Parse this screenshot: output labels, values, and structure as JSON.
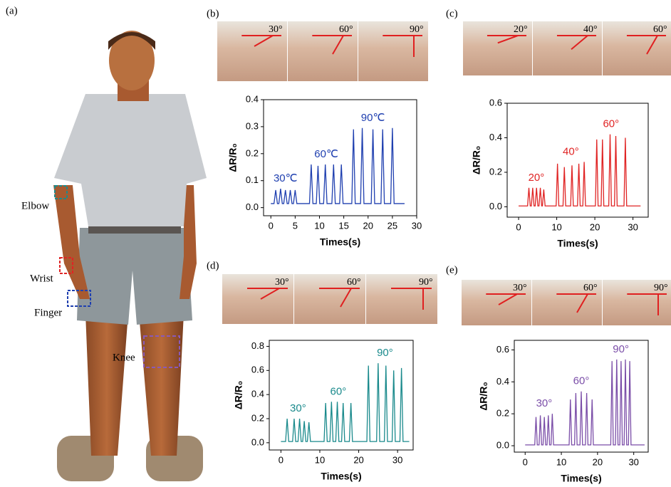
{
  "figure": {
    "panel_a": "(a)",
    "body_labels": [
      "Elbow",
      "Wrist",
      "Finger",
      "Knee"
    ]
  },
  "chart_data": [
    {
      "type": "line",
      "panel": "(b)",
      "photo_labels": [
        "30°",
        "60°",
        "90°"
      ],
      "annotations": [
        "30℃",
        "60℃",
        "90℃"
      ],
      "xlabel": "Times(s)",
      "ylabel": "ΔR/R₀",
      "color": "#2040b0",
      "xlim": [
        -1.5,
        30
      ],
      "xticks": [
        0,
        5,
        10,
        15,
        20,
        25,
        30
      ],
      "ylim": [
        -0.03,
        0.4
      ],
      "yticks": [
        {
          "value": 0,
          "label": "0.0"
        },
        0.1,
        0.2,
        0.3,
        0.4
      ],
      "x": [
        0,
        0.65,
        1,
        1.35,
        1.65,
        2,
        2.35,
        2.65,
        3,
        3.35,
        3.65,
        4,
        4.35,
        4.65,
        5,
        5.35,
        7.95,
        8.3,
        8.65,
        9.35,
        9.7,
        10.05,
        10.85,
        11.2,
        11.55,
        12.55,
        12.9,
        13.25,
        14.15,
        14.5,
        14.85,
        16.65,
        17,
        17.35,
        18.45,
        18.8,
        19.15,
        20.65,
        21,
        21.35,
        22.65,
        23,
        23.35,
        24.65,
        25,
        25.35,
        27.5
      ],
      "values": [
        0.015,
        0.015,
        0.065,
        0.015,
        0.015,
        0.07,
        0.015,
        0.015,
        0.065,
        0.015,
        0.015,
        0.065,
        0.015,
        0.015,
        0.065,
        0.015,
        0.015,
        0.16,
        0.015,
        0.015,
        0.155,
        0.015,
        0.015,
        0.16,
        0.015,
        0.015,
        0.16,
        0.015,
        0.015,
        0.16,
        0.015,
        0.015,
        0.29,
        0.015,
        0.015,
        0.295,
        0.015,
        0.015,
        0.29,
        0.015,
        0.015,
        0.29,
        0.015,
        0.015,
        0.295,
        0.015,
        0.015
      ]
    },
    {
      "type": "line",
      "panel": "(c)",
      "photo_labels": [
        "20°",
        "40°",
        "60°"
      ],
      "annotations": [
        "20°",
        "40°",
        "60°"
      ],
      "xlabel": "Times(s)",
      "ylabel": "ΔR/R₀",
      "color": "#e02424",
      "xlim": [
        -3,
        34
      ],
      "xticks": [
        0,
        10,
        20,
        30
      ],
      "ylim": [
        -0.06,
        0.6
      ],
      "yticks": [
        {
          "value": 0,
          "label": "0.0"
        },
        0.2,
        0.4,
        0.6
      ],
      "x": [
        0,
        2.35,
        2.7,
        3.05,
        3.35,
        3.7,
        4.05,
        4.35,
        4.7,
        5.05,
        5.35,
        5.7,
        6.05,
        6.25,
        6.6,
        6.95,
        9.85,
        10.2,
        10.55,
        11.65,
        12,
        12.35,
        13.65,
        14,
        14.35,
        15.45,
        15.8,
        16.15,
        16.85,
        17.2,
        17.55,
        20.15,
        20.5,
        20.85,
        21.65,
        22,
        22.35,
        23.65,
        24,
        24.35,
        25.15,
        25.5,
        25.85,
        27.65,
        28,
        28.35,
        32
      ],
      "values": [
        0.005,
        0.005,
        0.11,
        0.005,
        0.005,
        0.11,
        0.005,
        0.005,
        0.11,
        0.005,
        0.005,
        0.11,
        0.005,
        0.005,
        0.1,
        0.005,
        0.005,
        0.25,
        0.005,
        0.005,
        0.23,
        0.005,
        0.005,
        0.24,
        0.005,
        0.005,
        0.25,
        0.005,
        0.005,
        0.26,
        0.005,
        0.005,
        0.39,
        0.005,
        0.005,
        0.39,
        0.005,
        0.005,
        0.42,
        0.005,
        0.005,
        0.41,
        0.005,
        0.005,
        0.4,
        0.005,
        0.005
      ]
    },
    {
      "type": "line",
      "panel": "(d)",
      "photo_labels": [
        "30°",
        "60°",
        "90°"
      ],
      "annotations": [
        "30°",
        "60°",
        "90°"
      ],
      "xlabel": "Times(s)",
      "ylabel": "ΔR/R₀",
      "color": "#1a8a8c",
      "xlim": [
        -3,
        34
      ],
      "xticks": [
        0,
        10,
        20,
        30
      ],
      "ylim": [
        -0.06,
        0.85
      ],
      "yticks": [
        {
          "value": 0,
          "label": "0.0"
        },
        0.2,
        0.4,
        0.6,
        0.8
      ],
      "x": [
        0,
        1.2,
        1.6,
        2,
        3,
        3.4,
        3.8,
        4.4,
        4.8,
        5.2,
        5.6,
        6,
        6.4,
        6.8,
        7.2,
        7.6,
        11.1,
        11.5,
        11.9,
        12.6,
        13,
        13.4,
        14.1,
        14.5,
        14.9,
        15.6,
        16,
        16.4,
        17.6,
        18,
        18.4,
        22.1,
        22.5,
        22.9,
        24.6,
        25,
        25.4,
        26.6,
        27,
        27.4,
        28.6,
        29,
        29.4,
        30.6,
        31,
        31.4,
        33
      ],
      "values": [
        0.01,
        0.01,
        0.2,
        0.01,
        0.01,
        0.2,
        0.01,
        0.01,
        0.2,
        0.01,
        0.01,
        0.18,
        0.01,
        0.01,
        0.17,
        0.01,
        0.01,
        0.33,
        0.01,
        0.01,
        0.34,
        0.01,
        0.01,
        0.34,
        0.01,
        0.01,
        0.33,
        0.01,
        0.01,
        0.33,
        0.01,
        0.01,
        0.64,
        0.01,
        0.01,
        0.66,
        0.01,
        0.01,
        0.64,
        0.01,
        0.01,
        0.6,
        0.01,
        0.01,
        0.62,
        0.01,
        0.01
      ]
    },
    {
      "type": "line",
      "panel": "(e)",
      "photo_labels": [
        "30°",
        "60°",
        "90°"
      ],
      "annotations": [
        "30°",
        "60°",
        "90°"
      ],
      "xlabel": "Times(s)",
      "ylabel": "ΔR/R₀",
      "color": "#7b4ea8",
      "xlim": [
        -3,
        34
      ],
      "xticks": [
        0,
        10,
        20,
        30
      ],
      "ylim": [
        -0.04,
        0.66
      ],
      "yticks": [
        {
          "value": 0,
          "label": "0.0"
        },
        0.2,
        0.4,
        0.6
      ],
      "x": [
        0,
        2.65,
        3,
        3.35,
        3.85,
        4.2,
        4.55,
        4.95,
        5.3,
        5.65,
        6.05,
        6.4,
        6.75,
        7.15,
        7.5,
        7.85,
        12.15,
        12.5,
        12.85,
        13.65,
        14,
        14.35,
        15.15,
        15.5,
        15.85,
        16.65,
        17,
        17.35,
        18.15,
        18.5,
        18.85,
        23.65,
        24,
        24.35,
        24.95,
        25.3,
        25.65,
        26.15,
        26.5,
        26.85,
        27.35,
        27.7,
        28.05,
        28.55,
        28.9,
        29.25,
        33
      ],
      "values": [
        0.005,
        0.005,
        0.18,
        0.005,
        0.005,
        0.19,
        0.005,
        0.005,
        0.18,
        0.005,
        0.005,
        0.19,
        0.005,
        0.005,
        0.2,
        0.005,
        0.005,
        0.29,
        0.005,
        0.005,
        0.33,
        0.005,
        0.005,
        0.34,
        0.005,
        0.005,
        0.33,
        0.005,
        0.005,
        0.29,
        0.005,
        0.005,
        0.53,
        0.005,
        0.005,
        0.54,
        0.005,
        0.005,
        0.53,
        0.005,
        0.005,
        0.54,
        0.005,
        0.005,
        0.53,
        0.005,
        0.005
      ]
    }
  ]
}
